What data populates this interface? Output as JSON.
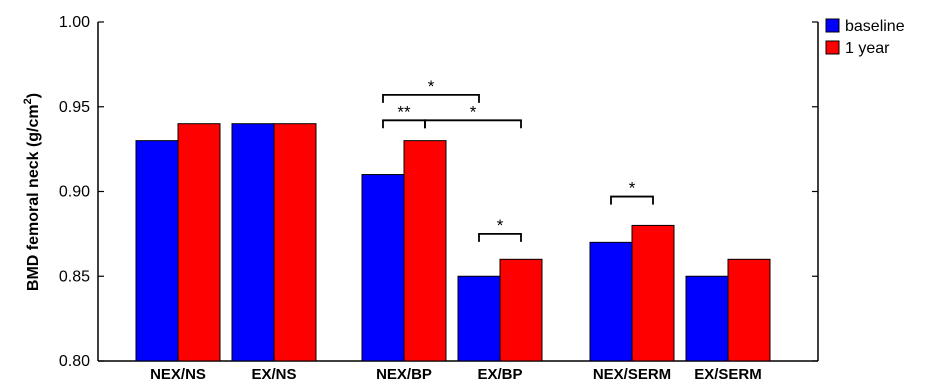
{
  "chart_data": {
    "type": "bar",
    "categories": [
      "NEX/NS",
      "EX/NS",
      "NEX/BP",
      "EX/BP",
      "NEX/SERM",
      "EX/SERM"
    ],
    "groups": [
      [
        "NEX/NS",
        "EX/NS"
      ],
      [
        "NEX/BP",
        "EX/BP"
      ],
      [
        "NEX/SERM",
        "EX/SERM"
      ]
    ],
    "series": [
      {
        "name": "baseline",
        "color": "#0000ff",
        "values": [
          0.93,
          0.94,
          0.91,
          0.85,
          0.87,
          0.85
        ]
      },
      {
        "name": "1 year",
        "color": "#ff0000",
        "values": [
          0.94,
          0.94,
          0.93,
          0.86,
          0.88,
          0.86
        ]
      }
    ],
    "ylabel": "BMD femoral neck (g/cm",
    "ylabel_sup": "2",
    "ylabel_close": ")",
    "ylim": [
      0.8,
      1.0
    ],
    "yticks": [
      0.8,
      0.85,
      0.9,
      0.95,
      1.0
    ],
    "ytick_labels": [
      "0.80",
      "0.85",
      "0.90",
      "0.95",
      "1.00"
    ],
    "grid": false,
    "legend_position": "top-right",
    "significance": [
      {
        "label": "**",
        "from": {
          "category": 2,
          "series": 0
        },
        "to": {
          "category": 2,
          "series": 1
        },
        "level": 0.942
      },
      {
        "label": "*",
        "from": {
          "category": 2,
          "series": 0
        },
        "to": {
          "category": 3,
          "series": 0
        },
        "level": 0.957
      },
      {
        "label": "*",
        "from": {
          "category": 2,
          "series": 1
        },
        "to": {
          "category": 3,
          "series": 1
        },
        "level": 0.942
      },
      {
        "label": "*",
        "from": {
          "category": 3,
          "series": 0
        },
        "to": {
          "category": 3,
          "series": 1
        },
        "level": 0.875
      },
      {
        "label": "*",
        "from": {
          "category": 4,
          "series": 0
        },
        "to": {
          "category": 4,
          "series": 1
        },
        "level": 0.897
      }
    ]
  }
}
